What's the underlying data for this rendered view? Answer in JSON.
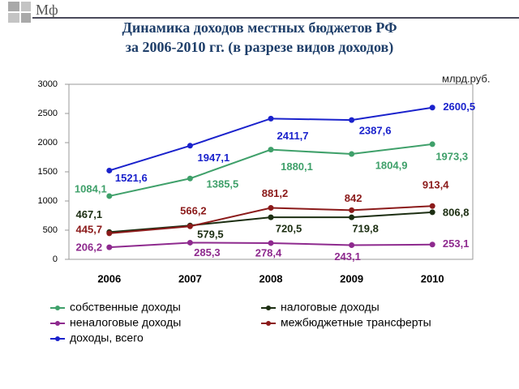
{
  "logo": "Мф",
  "chart_data": {
    "type": "line",
    "title": [
      "Динамика доходов местных бюджетов РФ",
      "за 2006-2010 гг. (в разрезе видов доходов)"
    ],
    "unit": "млрд.руб.",
    "categories": [
      "2006",
      "2007",
      "2008",
      "2009",
      "2010"
    ],
    "ylim": [
      0,
      3000
    ],
    "yticks": [
      0,
      500,
      1000,
      1500,
      2000,
      2500,
      3000
    ],
    "series": [
      {
        "name": "собственные доходы",
        "color": "#3fa06a",
        "values": [
          1084.1,
          1385.5,
          1880.1,
          1804.9,
          1973.3
        ],
        "value_labels": [
          "1084,1",
          "1385,5",
          "1880,1",
          "1804,9",
          "1973,3"
        ]
      },
      {
        "name": "налоговые доходы",
        "color": "#1c2e12",
        "values": [
          467.1,
          579.5,
          720.5,
          719.8,
          806.8
        ],
        "value_labels": [
          "467,1",
          "579,5",
          "720,5",
          "719,8",
          "806,8"
        ]
      },
      {
        "name": "неналоговые доходы",
        "color": "#8e2a8e",
        "values": [
          206.2,
          285.3,
          278.4,
          243.1,
          253.1
        ],
        "value_labels": [
          "206,2",
          "285,3",
          "278,4",
          "243,1",
          "253,1"
        ]
      },
      {
        "name": "межбюджетные трансферты",
        "color": "#8b1a1a",
        "values": [
          445.7,
          566.2,
          881.2,
          842,
          913.4
        ],
        "value_labels": [
          "445,7",
          "566,2",
          "881,2",
          "842",
          "913,4"
        ]
      },
      {
        "name": "доходы, всего",
        "color": "#1a22cc",
        "values": [
          1521.6,
          1947.1,
          2411.7,
          2387.6,
          2600.5
        ],
        "value_labels": [
          "1521,6",
          "1947,1",
          "2411,7",
          "2387,6",
          "2600,5"
        ]
      }
    ]
  }
}
